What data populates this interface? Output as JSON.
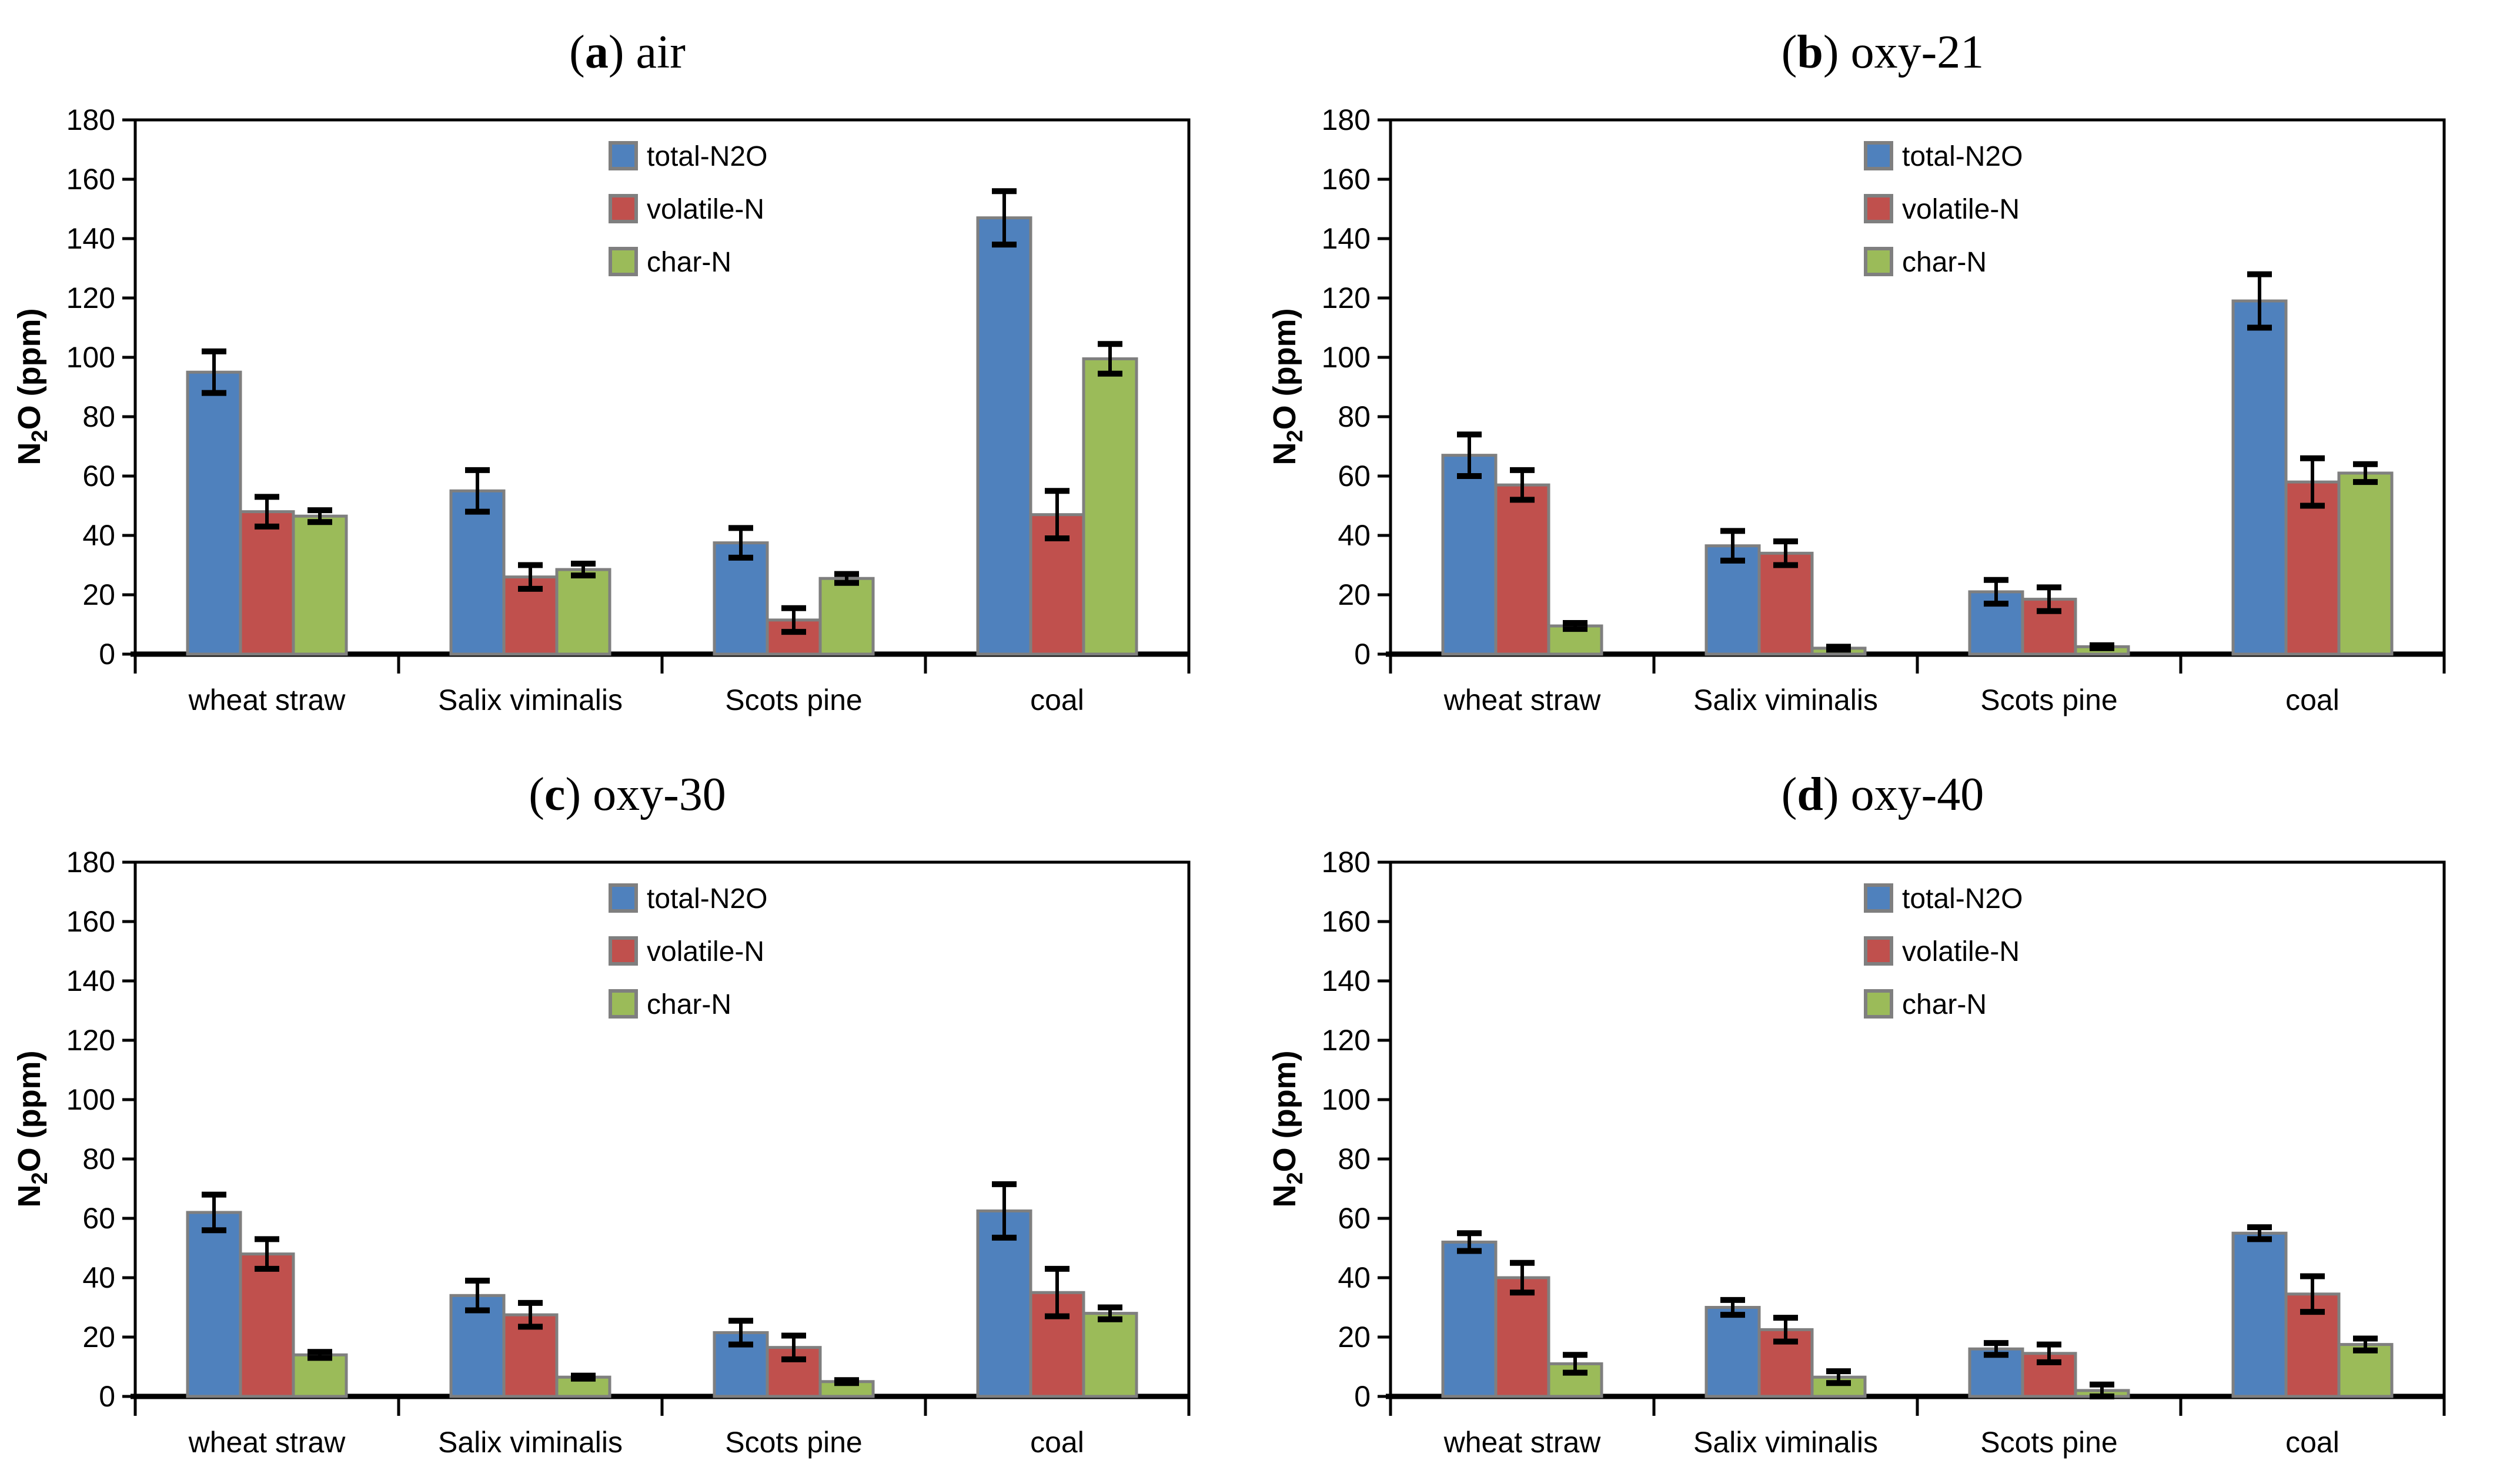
{
  "figure": {
    "background": "#FFFFFF",
    "axis_color": "#000000",
    "bar_border_color": "#7F7F7F",
    "error_bar_color": "#000000",
    "y_axis": {
      "label_pre": "N",
      "label_sub": "2",
      "label_post": "O (ppm)",
      "min": 0,
      "max": 180,
      "step": 20
    },
    "categories": [
      "wheat straw",
      "Salix viminalis",
      "Scots pine",
      "coal"
    ],
    "legend": [
      {
        "name": "total-N2O",
        "color": "#4F81BD"
      },
      {
        "name": "volatile-N",
        "color": "#C0504D"
      },
      {
        "name": "char-N",
        "color": "#9BBB59"
      }
    ]
  },
  "chart_data": [
    {
      "type": "bar",
      "panel": "a",
      "title_letter": "a",
      "title_text": "air",
      "ylabel": "N2O (ppm)",
      "ylim": [
        0,
        180
      ],
      "categories": [
        "wheat straw",
        "Salix viminalis",
        "Scots pine",
        "coal"
      ],
      "series": [
        {
          "name": "total-N2O",
          "values": [
            95,
            55,
            37.5,
            147
          ],
          "errors": [
            7,
            7,
            5,
            9
          ]
        },
        {
          "name": "volatile-N",
          "values": [
            48,
            26,
            11.5,
            47
          ],
          "errors": [
            5,
            4,
            4,
            8
          ]
        },
        {
          "name": "char-N",
          "values": [
            46.5,
            28.5,
            25.5,
            99.5
          ],
          "errors": [
            2,
            2,
            1.5,
            5
          ]
        }
      ]
    },
    {
      "type": "bar",
      "panel": "b",
      "title_letter": "b",
      "title_text": "oxy-21",
      "ylabel": "N2O (ppm)",
      "ylim": [
        0,
        180
      ],
      "categories": [
        "wheat straw",
        "Salix viminalis",
        "Scots pine",
        "coal"
      ],
      "series": [
        {
          "name": "total-N2O",
          "values": [
            67,
            36.5,
            21,
            119
          ],
          "errors": [
            7,
            5,
            4,
            9
          ]
        },
        {
          "name": "volatile-N",
          "values": [
            57,
            34,
            18.5,
            58
          ],
          "errors": [
            5,
            4,
            4,
            8
          ]
        },
        {
          "name": "char-N",
          "values": [
            9.5,
            2,
            2.5,
            61
          ],
          "errors": [
            1,
            0.5,
            0.5,
            3
          ]
        }
      ]
    },
    {
      "type": "bar",
      "panel": "c",
      "title_letter": "c",
      "title_text": "oxy-30",
      "ylabel": "N2O (ppm)",
      "ylim": [
        0,
        180
      ],
      "categories": [
        "wheat straw",
        "Salix viminalis",
        "Scots pine",
        "coal"
      ],
      "series": [
        {
          "name": "total-N2O",
          "values": [
            62,
            34,
            21.5,
            62.5
          ],
          "errors": [
            6,
            5,
            4,
            9
          ]
        },
        {
          "name": "volatile-N",
          "values": [
            48,
            27.5,
            16.5,
            35
          ],
          "errors": [
            5,
            4,
            4,
            8
          ]
        },
        {
          "name": "char-N",
          "values": [
            14,
            6.5,
            5,
            28
          ],
          "errors": [
            1,
            0.5,
            0.5,
            2
          ]
        }
      ]
    },
    {
      "type": "bar",
      "panel": "d",
      "title_letter": "d",
      "title_text": "oxy-40",
      "ylabel": "N2O (ppm)",
      "ylim": [
        0,
        180
      ],
      "categories": [
        "wheat straw",
        "Salix viminalis",
        "Scots pine",
        "coal"
      ],
      "series": [
        {
          "name": "total-N2O",
          "values": [
            52,
            30,
            16,
            55
          ],
          "errors": [
            3,
            2.5,
            2,
            2
          ]
        },
        {
          "name": "volatile-N",
          "values": [
            40,
            22.5,
            14.5,
            34.5
          ],
          "errors": [
            5,
            4,
            3,
            6
          ]
        },
        {
          "name": "char-N",
          "values": [
            11,
            6.5,
            2,
            17.5
          ],
          "errors": [
            3,
            2,
            2,
            2
          ]
        }
      ]
    }
  ]
}
